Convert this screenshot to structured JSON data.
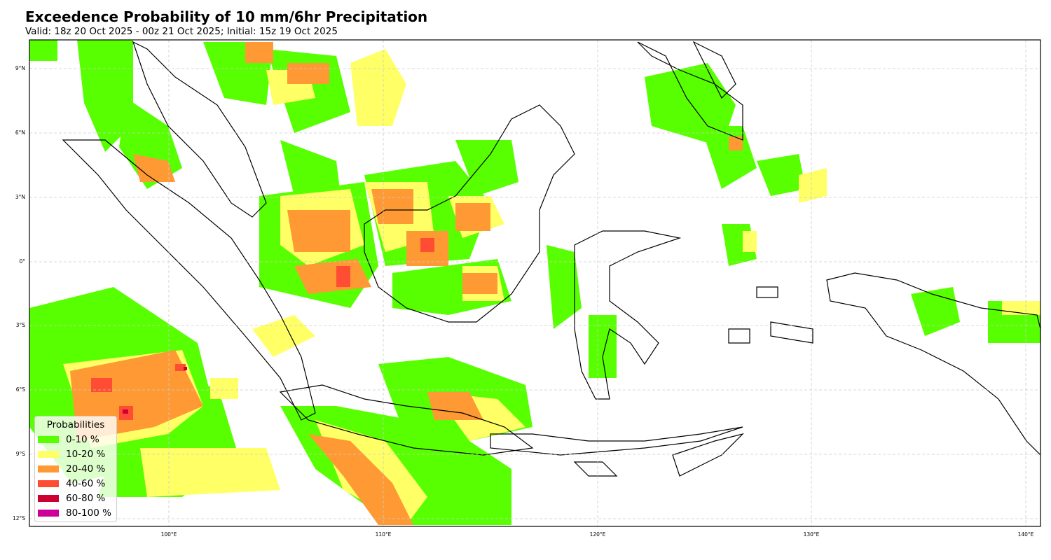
{
  "title": "Exceedence Probability of 10 mm/6hr Precipitation",
  "subtitle": "Valid: 18z 20 Oct 2025 - 00z 21 Oct 2025; Initial: 15z 19 Oct 2025",
  "lat_ticks": [
    "9°N",
    "6°N",
    "3°N",
    "0°",
    "3°S",
    "6°S",
    "9°S",
    "12°S"
  ],
  "lon_ticks": [
    "100°E",
    "110°E",
    "120°E",
    "130°E",
    "140°E"
  ],
  "legend": {
    "title": "Probabilities",
    "items": [
      {
        "label": "0-10 %",
        "color": "#58ff00"
      },
      {
        "label": "10-20 %",
        "color": "#ffff66"
      },
      {
        "label": "20-40 %",
        "color": "#ff9933"
      },
      {
        "label": "40-60 %",
        "color": "#ff4d33"
      },
      {
        "label": "60-80 %",
        "color": "#cc0033"
      },
      {
        "label": "80-100 %",
        "color": "#cc0099"
      }
    ]
  }
}
